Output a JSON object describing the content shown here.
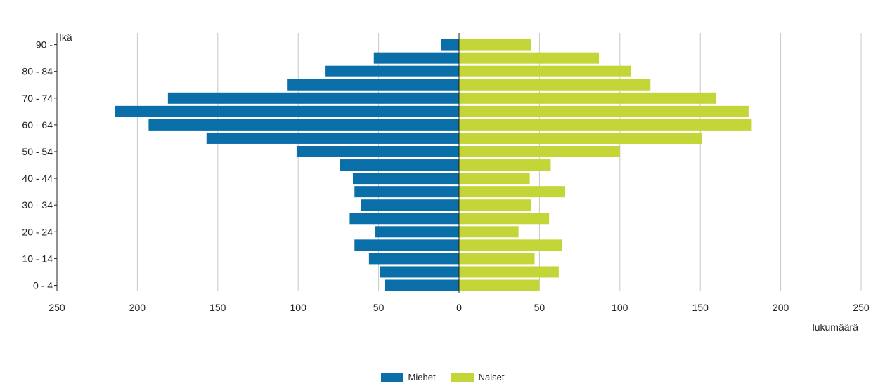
{
  "colors": {
    "men": "#0a6fa9",
    "women": "#c4d637",
    "grid": "#c8c8c8",
    "axis": "#222222"
  },
  "chart_data": {
    "type": "bar",
    "orientation": "horizontal",
    "layout": "population-pyramid",
    "ylabel": "Ikä",
    "xlabel": "lukumäärä",
    "xlim": [
      -250,
      250
    ],
    "x_ticks": [
      -250,
      -200,
      -150,
      -100,
      -50,
      0,
      50,
      100,
      150,
      200,
      250
    ],
    "x_tick_labels": [
      "250",
      "200",
      "150",
      "100",
      "50",
      "0",
      "50",
      "100",
      "150",
      "200",
      "250"
    ],
    "grid": true,
    "legend_placement": "bottom-center",
    "categories": [
      "0 - 4",
      "5 - 9",
      "10 - 14",
      "15 - 19",
      "20 - 24",
      "25 - 29",
      "30 - 34",
      "35 - 39",
      "40 - 44",
      "45 - 49",
      "50 - 54",
      "55 - 59",
      "60 - 64",
      "65 - 69",
      "70 - 74",
      "75 - 79",
      "80 - 84",
      "85 - 89",
      "90 -"
    ],
    "visible_tick_labels": [
      "0 - 4",
      "10 - 14",
      "20 - 24",
      "30 - 34",
      "40 - 44",
      "50 - 54",
      "60 - 64",
      "70 - 74",
      "80 - 84",
      "90 -"
    ],
    "series": [
      {
        "name": "Miehet",
        "values": [
          46,
          49,
          56,
          65,
          52,
          68,
          61,
          65,
          66,
          74,
          101,
          157,
          193,
          214,
          181,
          107,
          83,
          53,
          11
        ]
      },
      {
        "name": "Naiset",
        "values": [
          50,
          62,
          47,
          64,
          37,
          56,
          45,
          66,
          44,
          57,
          100,
          151,
          182,
          180,
          160,
          119,
          107,
          87,
          45
        ]
      }
    ]
  }
}
